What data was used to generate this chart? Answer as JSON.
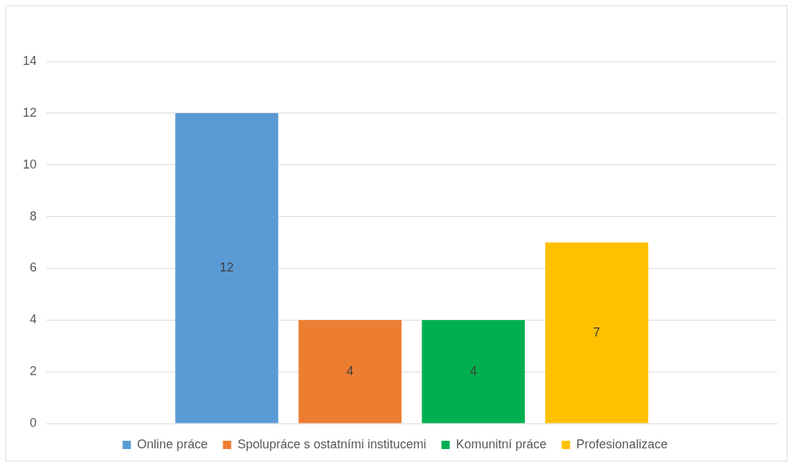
{
  "chart_data": {
    "type": "bar",
    "categories": [
      null
    ],
    "series": [
      {
        "name": "Online práce",
        "color": "#5b9bd5",
        "values": [
          12
        ]
      },
      {
        "name": "Spolupráce s ostatními institucemi",
        "color": "#ed7d31",
        "values": [
          4
        ]
      },
      {
        "name": "Komunitní práce",
        "color": "#00b050",
        "values": [
          4
        ]
      },
      {
        "name": "Profesionalizace",
        "color": "#ffc000",
        "values": [
          7
        ]
      }
    ],
    "ylim": [
      0,
      14
    ],
    "yticks": [
      0,
      2,
      4,
      6,
      8,
      10,
      12,
      14
    ],
    "grid": "y",
    "legend": "bottom",
    "data_labels": true
  }
}
